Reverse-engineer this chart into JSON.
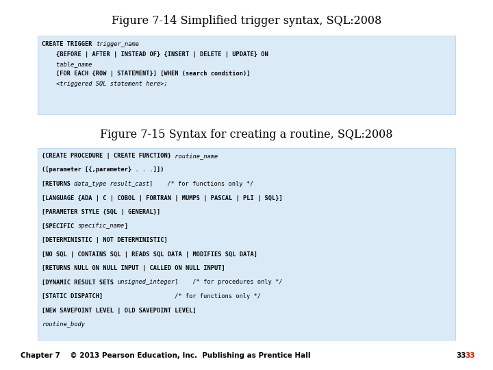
{
  "title1": "Figure 7-14 Simplified trigger syntax, SQL:2008",
  "title2": "Figure 7-15 Syntax for creating a routine, SQL:2008",
  "footer": "Chapter 7    © 2013 Pearson Education, Inc.  Publishing as Prentice Hall",
  "page_num1": "33",
  "page_num2": "33",
  "bg_color": "#ffffff",
  "box_color": "#daeaf7",
  "title1_fontsize": 11.5,
  "title2_fontsize": 11.5,
  "code_fontsize": 6.2,
  "footer_fontsize": 7.5,
  "box1_lines": [
    [
      {
        "text": "CREATE TRIGGER ",
        "style": "bold"
      },
      {
        "text": "trigger_name",
        "style": "italic"
      }
    ],
    [
      {
        "text": "    {BEFORE | AFTER | INSTEAD OF} {INSERT | DELETE | UPDATE} ON",
        "style": "bold"
      }
    ],
    [
      {
        "text": "    table_name",
        "style": "italic"
      }
    ],
    [
      {
        "text": "    [FOR EACH {ROW | STATEMENT}] [WHEN (search condition)]",
        "style": "bold"
      }
    ],
    [
      {
        "text": "    <triggered SQL statement here>;",
        "style": "italic"
      }
    ]
  ],
  "box2_lines": [
    [
      {
        "text": "{CREATE PROCEDURE | CREATE FUNCTION}",
        "style": "bold"
      },
      {
        "text": " routine_name",
        "style": "italic"
      }
    ],
    [
      {
        "text": "([parameter [{,parameter} . . .]])",
        "style": "bold"
      }
    ],
    [
      {
        "text": "[RETURNS ",
        "style": "bold"
      },
      {
        "text": "data_type result_cast",
        "style": "italic"
      },
      {
        "text": "]    /* for functions only */",
        "style": "normal"
      }
    ],
    [
      {
        "text": "[LANGUAGE {ADA | C | COBOL | FORTRAN | MUMPS | PASCAL | PLI | SQL}]",
        "style": "bold"
      }
    ],
    [
      {
        "text": "[PARAMETER STYLE {SQL | GENERAL}]",
        "style": "bold"
      }
    ],
    [
      {
        "text": "[SPECIFIC ",
        "style": "bold"
      },
      {
        "text": "specific_name",
        "style": "italic"
      },
      {
        "text": "]",
        "style": "bold"
      }
    ],
    [
      {
        "text": "[DETERMINISTIC | NOT DETERMINISTIC]",
        "style": "bold"
      }
    ],
    [
      {
        "text": "[NO SQL | CONTAINS SQL | READS SQL DATA | MODIFIES SQL DATA]",
        "style": "bold"
      }
    ],
    [
      {
        "text": "[RETURNS NULL ON NULL INPUT | CALLED ON NULL INPUT]",
        "style": "bold"
      }
    ],
    [
      {
        "text": "[DYNAMIC RESULT SETS ",
        "style": "bold"
      },
      {
        "text": "unsigned_integer",
        "style": "italic"
      },
      {
        "text": "]    /* for procedures only */",
        "style": "normal"
      }
    ],
    [
      {
        "text": "[STATIC DISPATCH]",
        "style": "bold"
      },
      {
        "text": "                    /* for functions only */",
        "style": "normal"
      }
    ],
    [
      {
        "text": "[NEW SAVEPOINT LEVEL | OLD SAVEPOINT LEVEL]",
        "style": "bold"
      }
    ],
    [
      {
        "text": "routine_body",
        "style": "italic"
      }
    ]
  ]
}
